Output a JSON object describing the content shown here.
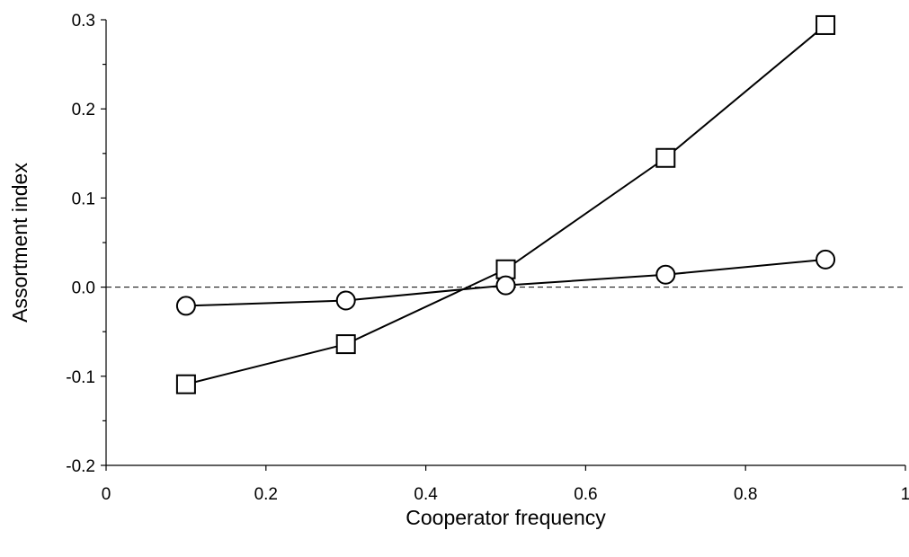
{
  "chart_data": {
    "type": "line",
    "xlabel": "Cooperator frequency",
    "ylabel": "Assortment index",
    "xlim": [
      0,
      1
    ],
    "ylim": [
      -0.2,
      0.3
    ],
    "x_ticks": [
      0,
      0.2,
      0.4,
      0.6,
      0.8,
      1
    ],
    "x_tick_labels": [
      "0",
      "0.2",
      "0.4",
      "0.6",
      "0.8",
      "1"
    ],
    "y_ticks": [
      -0.2,
      -0.1,
      0.0,
      0.1,
      0.2,
      0.3
    ],
    "y_tick_labels": [
      "-0.2",
      "-0.1",
      "0.0",
      "0.1",
      "0.2",
      "0.3"
    ],
    "y_minor_step": 0.05,
    "reference_line": {
      "y": 0,
      "style": "dashed"
    },
    "grid": false,
    "legend": false,
    "series": [
      {
        "marker": "square",
        "color": "#000000",
        "x": [
          0.1,
          0.3,
          0.5,
          0.7,
          0.9
        ],
        "y": [
          -0.109,
          -0.064,
          0.02,
          0.145,
          0.294
        ]
      },
      {
        "marker": "circle",
        "color": "#000000",
        "x": [
          0.1,
          0.3,
          0.5,
          0.7,
          0.9
        ],
        "y": [
          -0.021,
          -0.015,
          0.002,
          0.014,
          0.031
        ]
      }
    ]
  }
}
